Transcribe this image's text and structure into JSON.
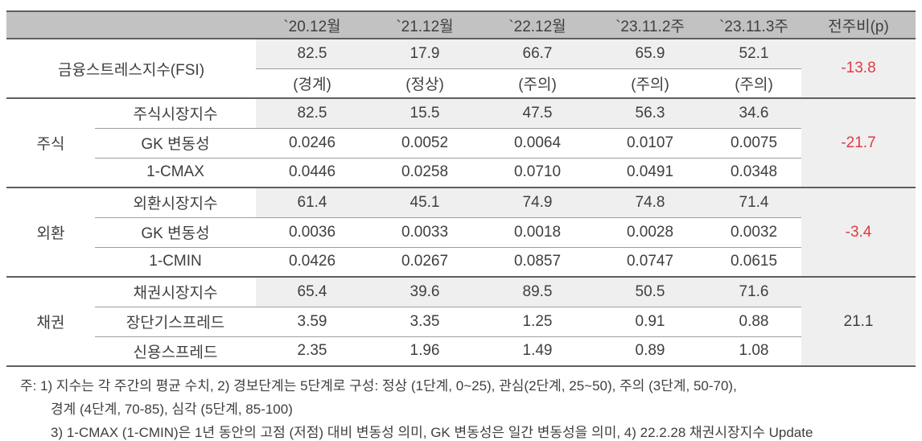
{
  "colors": {
    "header_bg": "#c2c2c2",
    "shaded_bg": "#efefef",
    "negative": "#e23a44",
    "text": "#3f3f3f",
    "section_border": "#5f5f5f",
    "row_border": "#9e9e9e"
  },
  "header": {
    "columns": [
      "`20.12월",
      "`21.12월",
      "`22.12월",
      "`23.11.2주",
      "`23.11.3주",
      "전주비(p)"
    ]
  },
  "fsi": {
    "label": "금융스트레스지수(FSI)",
    "values": [
      "82.5",
      "17.9",
      "66.7",
      "65.9",
      "52.1"
    ],
    "statuses": [
      "(경계)",
      "(정상)",
      "(주의)",
      "(주의)",
      "(주의)"
    ],
    "wow": "-13.8"
  },
  "sections": [
    {
      "label": "주식",
      "wow": "-21.7",
      "rows": [
        {
          "label": "주식시장지수",
          "values": [
            "82.5",
            "15.5",
            "47.5",
            "56.3",
            "34.6"
          ]
        },
        {
          "label": "GK 변동성",
          "values": [
            "0.0246",
            "0.0052",
            "0.0064",
            "0.0107",
            "0.0075"
          ]
        },
        {
          "label": "1-CMAX",
          "values": [
            "0.0446",
            "0.0258",
            "0.0710",
            "0.0491",
            "0.0348"
          ]
        }
      ]
    },
    {
      "label": "외환",
      "wow": "-3.4",
      "rows": [
        {
          "label": "외환시장지수",
          "values": [
            "61.4",
            "45.1",
            "74.9",
            "74.8",
            "71.4"
          ]
        },
        {
          "label": "GK 변동성",
          "values": [
            "0.0036",
            "0.0033",
            "0.0018",
            "0.0028",
            "0.0032"
          ]
        },
        {
          "label": "1-CMIN",
          "values": [
            "0.0426",
            "0.0267",
            "0.0857",
            "0.0747",
            "0.0615"
          ]
        }
      ]
    },
    {
      "label": "채권",
      "wow": "21.1",
      "rows": [
        {
          "label": "채권시장지수",
          "values": [
            "65.4",
            "39.6",
            "89.5",
            "50.5",
            "71.6"
          ]
        },
        {
          "label": "장단기스프레드",
          "values": [
            "3.59",
            "3.35",
            "1.25",
            "0.91",
            "0.88"
          ]
        },
        {
          "label": "신용스프레드",
          "values": [
            "2.35",
            "1.96",
            "1.49",
            "0.89",
            "1.08"
          ]
        }
      ]
    }
  ],
  "notes": {
    "lines": [
      "주: 1) 지수는 각 주간의 평균 수치, 2) 경보단계는 5단계로 구성: 정상 (1단계, 0~25), 관심(2단계, 25~50), 주의 (3단계, 50-70),",
      "경계 (4단계, 70-85), 심각 (5단계, 85-100)",
      "3) 1-CMAX (1-CMIN)은 1년 동안의 고점 (저점) 대비 변동성 의미, GK 변동성은 일간 변동성을 의미, 4) 22.2.28 채권시장지수 Update"
    ]
  }
}
